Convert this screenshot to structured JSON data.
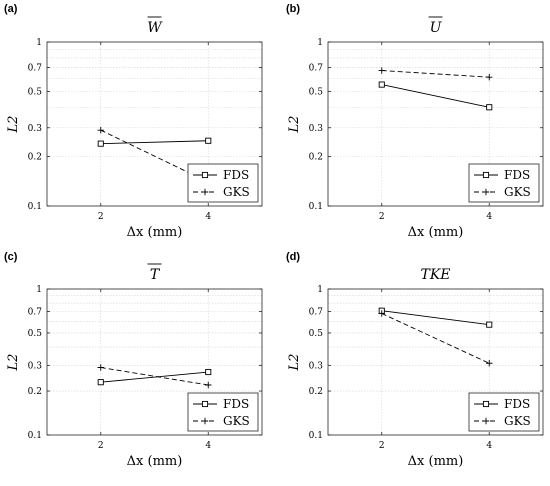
{
  "chart_data": [
    {
      "type": "line",
      "panel_label": "(a)",
      "title": "W",
      "title_overline": true,
      "xlabel": "Δx (mm)",
      "ylabel": "L2",
      "yscale": "log",
      "xlim": [
        1,
        5
      ],
      "ylim": [
        0.1,
        1
      ],
      "xticks": [
        "2",
        "4"
      ],
      "yticks": [
        "0.1",
        "0.2",
        "0.3",
        "0.5",
        "0.7",
        "1"
      ],
      "grid": true,
      "legend_position": "bottom-right",
      "series": [
        {
          "name": "FDS",
          "marker": "square",
          "line": "solid",
          "x": [
            2,
            4
          ],
          "y": [
            0.24,
            0.25
          ]
        },
        {
          "name": "GKS",
          "marker": "plus",
          "line": "dashed",
          "x": [
            2,
            4
          ],
          "y": [
            0.29,
            0.14
          ]
        }
      ]
    },
    {
      "type": "line",
      "panel_label": "(b)",
      "title": "U",
      "title_overline": true,
      "xlabel": "Δx (mm)",
      "ylabel": "L2",
      "yscale": "log",
      "xlim": [
        1,
        5
      ],
      "ylim": [
        0.1,
        1
      ],
      "xticks": [
        "2",
        "4"
      ],
      "yticks": [
        "0.1",
        "0.2",
        "0.3",
        "0.5",
        "0.7",
        "1"
      ],
      "grid": true,
      "legend_position": "bottom-right",
      "series": [
        {
          "name": "FDS",
          "marker": "square",
          "line": "solid",
          "x": [
            2,
            4
          ],
          "y": [
            0.55,
            0.4
          ]
        },
        {
          "name": "GKS",
          "marker": "plus",
          "line": "dashed",
          "x": [
            2,
            4
          ],
          "y": [
            0.67,
            0.61
          ]
        }
      ]
    },
    {
      "type": "line",
      "panel_label": "(c)",
      "title": "T",
      "title_overline": true,
      "xlabel": "Δx (mm)",
      "ylabel": "L2",
      "yscale": "log",
      "xlim": [
        1,
        5
      ],
      "ylim": [
        0.1,
        1
      ],
      "xticks": [
        "2",
        "4"
      ],
      "yticks": [
        "0.1",
        "0.2",
        "0.3",
        "0.5",
        "0.7",
        "1"
      ],
      "grid": true,
      "legend_position": "bottom-right",
      "series": [
        {
          "name": "FDS",
          "marker": "square",
          "line": "solid",
          "x": [
            2,
            4
          ],
          "y": [
            0.23,
            0.27
          ]
        },
        {
          "name": "GKS",
          "marker": "plus",
          "line": "dashed",
          "x": [
            2,
            4
          ],
          "y": [
            0.29,
            0.22
          ]
        }
      ]
    },
    {
      "type": "line",
      "panel_label": "(d)",
      "title": "TKE",
      "title_overline": false,
      "xlabel": "Δx (mm)",
      "ylabel": "L2",
      "yscale": "log",
      "xlim": [
        1,
        5
      ],
      "ylim": [
        0.1,
        1
      ],
      "xticks": [
        "2",
        "4"
      ],
      "yticks": [
        "0.1",
        "0.2",
        "0.3",
        "0.5",
        "0.7",
        "1"
      ],
      "grid": true,
      "legend_position": "bottom-right",
      "series": [
        {
          "name": "FDS",
          "marker": "square",
          "line": "solid",
          "x": [
            2,
            4
          ],
          "y": [
            0.71,
            0.57
          ]
        },
        {
          "name": "GKS",
          "marker": "plus",
          "line": "dashed",
          "x": [
            2,
            4
          ],
          "y": [
            0.68,
            0.31
          ]
        }
      ]
    }
  ]
}
